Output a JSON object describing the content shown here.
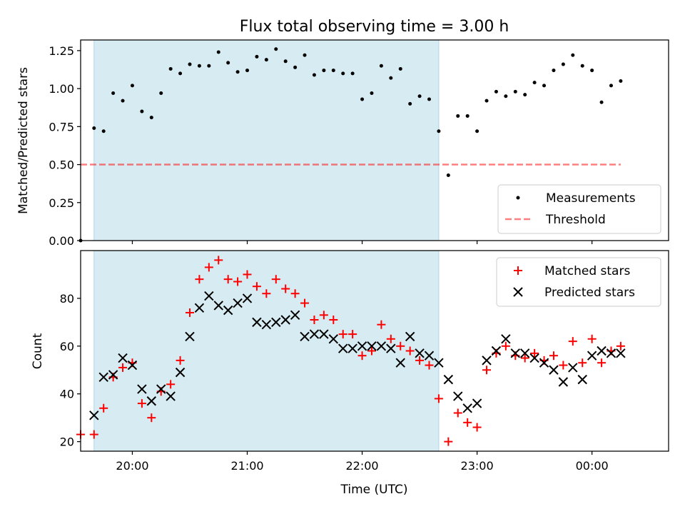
{
  "figure": {
    "title": "Flux total observing time = 3.00 h",
    "xlabel": "Time (UTC)",
    "x_ticks": [
      "20:00",
      "21:00",
      "22:00",
      "23:00",
      "00:00"
    ]
  },
  "colors": {
    "shade": "#add8e6",
    "measurement": "#000000",
    "threshold": "#ff0000",
    "matched": "#ff0000",
    "predicted": "#000000"
  },
  "chart_data": [
    {
      "type": "scatter",
      "ylabel": "Matched/Predicted stars",
      "y_ticks": [
        "0.00",
        "0.25",
        "0.50",
        "0.75",
        "1.00",
        "1.25"
      ],
      "ylim": [
        0.0,
        1.32
      ],
      "xlim": [
        "19:33",
        "00:40"
      ],
      "shaded_span": [
        "19:40",
        "22:40"
      ],
      "legend": {
        "placement": "lower-right",
        "entries": [
          "Measurements",
          "Threshold"
        ]
      },
      "threshold": {
        "name": "Threshold",
        "value": 0.5,
        "x": [
          "19:33",
          "00:15"
        ]
      },
      "series": [
        {
          "name": "Measurements",
          "x": [
            "19:33",
            "19:40",
            "19:45",
            "19:50",
            "19:55",
            "20:00",
            "20:05",
            "20:10",
            "20:15",
            "20:20",
            "20:25",
            "20:30",
            "20:35",
            "20:40",
            "20:45",
            "20:50",
            "20:55",
            "21:00",
            "21:05",
            "21:10",
            "21:15",
            "21:20",
            "21:25",
            "21:30",
            "21:35",
            "21:40",
            "21:45",
            "21:50",
            "21:55",
            "22:00",
            "22:05",
            "22:10",
            "22:15",
            "22:20",
            "22:25",
            "22:30",
            "22:35",
            "22:40",
            "22:45",
            "22:50",
            "22:55",
            "23:00",
            "23:05",
            "23:10",
            "23:15",
            "23:20",
            "23:25",
            "23:30",
            "23:35",
            "23:40",
            "23:45",
            "23:50",
            "23:55",
            "00:00",
            "00:05",
            "00:10",
            "00:15"
          ],
          "y": [
            0.0,
            0.74,
            0.72,
            0.97,
            0.92,
            1.02,
            0.85,
            0.81,
            0.97,
            1.13,
            1.1,
            1.16,
            1.15,
            1.15,
            1.24,
            1.17,
            1.11,
            1.12,
            1.21,
            1.19,
            1.26,
            1.18,
            1.14,
            1.22,
            1.09,
            1.12,
            1.12,
            1.1,
            1.1,
            0.93,
            0.97,
            1.15,
            1.07,
            1.13,
            0.9,
            0.95,
            0.93,
            0.72,
            0.43,
            0.82,
            0.82,
            0.72,
            0.92,
            0.98,
            0.95,
            0.98,
            0.96,
            1.04,
            1.02,
            1.12,
            1.16,
            1.22,
            1.15,
            1.12,
            0.91,
            1.02,
            1.05
          ]
        }
      ]
    },
    {
      "type": "scatter",
      "ylabel": "Count",
      "y_ticks": [
        "20",
        "40",
        "60",
        "80"
      ],
      "ylim": [
        16,
        100
      ],
      "xlim": [
        "19:33",
        "00:40"
      ],
      "shaded_span": [
        "19:40",
        "22:40"
      ],
      "legend": {
        "placement": "upper-right",
        "entries": [
          "Matched stars",
          "Predicted stars"
        ]
      },
      "series": [
        {
          "name": "Matched stars",
          "marker": "plus",
          "x": [
            "19:33",
            "19:40",
            "19:45",
            "19:50",
            "19:55",
            "20:00",
            "20:05",
            "20:10",
            "20:15",
            "20:20",
            "20:25",
            "20:30",
            "20:35",
            "20:40",
            "20:45",
            "20:50",
            "20:55",
            "21:00",
            "21:05",
            "21:10",
            "21:15",
            "21:20",
            "21:25",
            "21:30",
            "21:35",
            "21:40",
            "21:45",
            "21:50",
            "21:55",
            "22:00",
            "22:05",
            "22:10",
            "22:15",
            "22:20",
            "22:25",
            "22:30",
            "22:35",
            "22:40",
            "22:45",
            "22:50",
            "22:55",
            "23:00",
            "23:05",
            "23:10",
            "23:15",
            "23:20",
            "23:25",
            "23:30",
            "23:35",
            "23:40",
            "23:45",
            "23:50",
            "23:55",
            "00:00",
            "00:05",
            "00:10",
            "00:15"
          ],
          "y": [
            23,
            23,
            34,
            47,
            51,
            53,
            36,
            30,
            41,
            44,
            54,
            74,
            88,
            93,
            96,
            88,
            87,
            90,
            85,
            82,
            88,
            84,
            82,
            78,
            71,
            73,
            71,
            65,
            65,
            56,
            58,
            69,
            63,
            60,
            58,
            54,
            52,
            38,
            20,
            32,
            28,
            26,
            50,
            57,
            60,
            56,
            55,
            57,
            54,
            56,
            52,
            62,
            53,
            63,
            53,
            58,
            60
          ]
        },
        {
          "name": "Predicted stars",
          "marker": "x",
          "x": [
            "19:40",
            "19:45",
            "19:50",
            "19:55",
            "20:00",
            "20:05",
            "20:10",
            "20:15",
            "20:20",
            "20:25",
            "20:30",
            "20:35",
            "20:40",
            "20:45",
            "20:50",
            "20:55",
            "21:00",
            "21:05",
            "21:10",
            "21:15",
            "21:20",
            "21:25",
            "21:30",
            "21:35",
            "21:40",
            "21:45",
            "21:50",
            "21:55",
            "22:00",
            "22:05",
            "22:10",
            "22:15",
            "22:20",
            "22:25",
            "22:30",
            "22:35",
            "22:40",
            "22:45",
            "22:50",
            "22:55",
            "23:00",
            "23:05",
            "23:10",
            "23:15",
            "23:20",
            "23:25",
            "23:30",
            "23:35",
            "23:40",
            "23:45",
            "23:50",
            "23:55",
            "00:00",
            "00:05",
            "00:10",
            "00:15"
          ],
          "y": [
            31,
            47,
            48,
            55,
            52,
            42,
            37,
            42,
            39,
            49,
            64,
            76,
            81,
            77,
            75,
            78,
            80,
            70,
            69,
            70,
            71,
            73,
            64,
            65,
            65,
            63,
            59,
            59,
            60,
            60,
            60,
            59,
            53,
            64,
            57,
            56,
            53,
            46,
            39,
            34,
            36,
            54,
            58,
            63,
            57,
            57,
            55,
            53,
            50,
            45,
            51,
            46,
            56,
            58,
            57,
            57
          ]
        }
      ]
    }
  ]
}
